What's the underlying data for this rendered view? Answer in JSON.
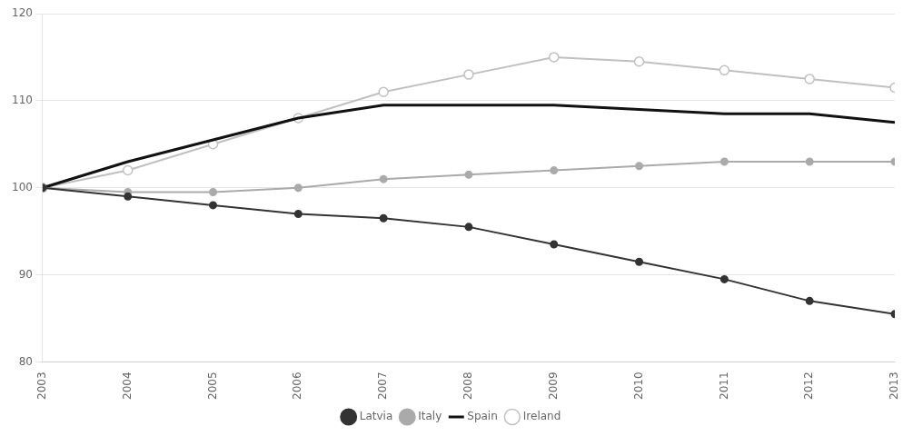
{
  "chart_data": {
    "type": "line",
    "x": [
      2003,
      2004,
      2005,
      2006,
      2007,
      2008,
      2009,
      2010,
      2011,
      2012,
      2013
    ],
    "series": [
      {
        "name": "Latvia",
        "color": "#333333",
        "marker": "circle",
        "values": [
          100,
          99.0,
          98.0,
          97.0,
          96.5,
          95.5,
          93.5,
          91.5,
          89.5,
          87.0,
          85.5
        ]
      },
      {
        "name": "Italy",
        "color": "#aaaaaa",
        "marker": "circle",
        "values": [
          100,
          99.5,
          99.5,
          100.0,
          101.0,
          101.5,
          102.0,
          102.5,
          103.0,
          103.0,
          103.0
        ]
      },
      {
        "name": "Spain",
        "color": "#111111",
        "marker": "none",
        "values": [
          100,
          103.0,
          105.5,
          108.0,
          109.5,
          109.5,
          109.5,
          109.0,
          108.5,
          108.5,
          107.5
        ]
      },
      {
        "name": "Ireland",
        "color": "#c0c0c0",
        "marker": "open_circle",
        "values": [
          100,
          102.0,
          105.0,
          108.0,
          111.0,
          113.0,
          115.0,
          114.5,
          113.5,
          112.5,
          111.5
        ]
      }
    ],
    "xlim": [
      2003,
      2013
    ],
    "xticks": [
      2003,
      2004,
      2005,
      2006,
      2007,
      2008,
      2009,
      2010,
      2011,
      2012,
      2013
    ],
    "ylim": [
      80,
      120
    ],
    "yticks": [
      80,
      90,
      100,
      110,
      120
    ],
    "grid": "y",
    "legend": "bottom"
  }
}
